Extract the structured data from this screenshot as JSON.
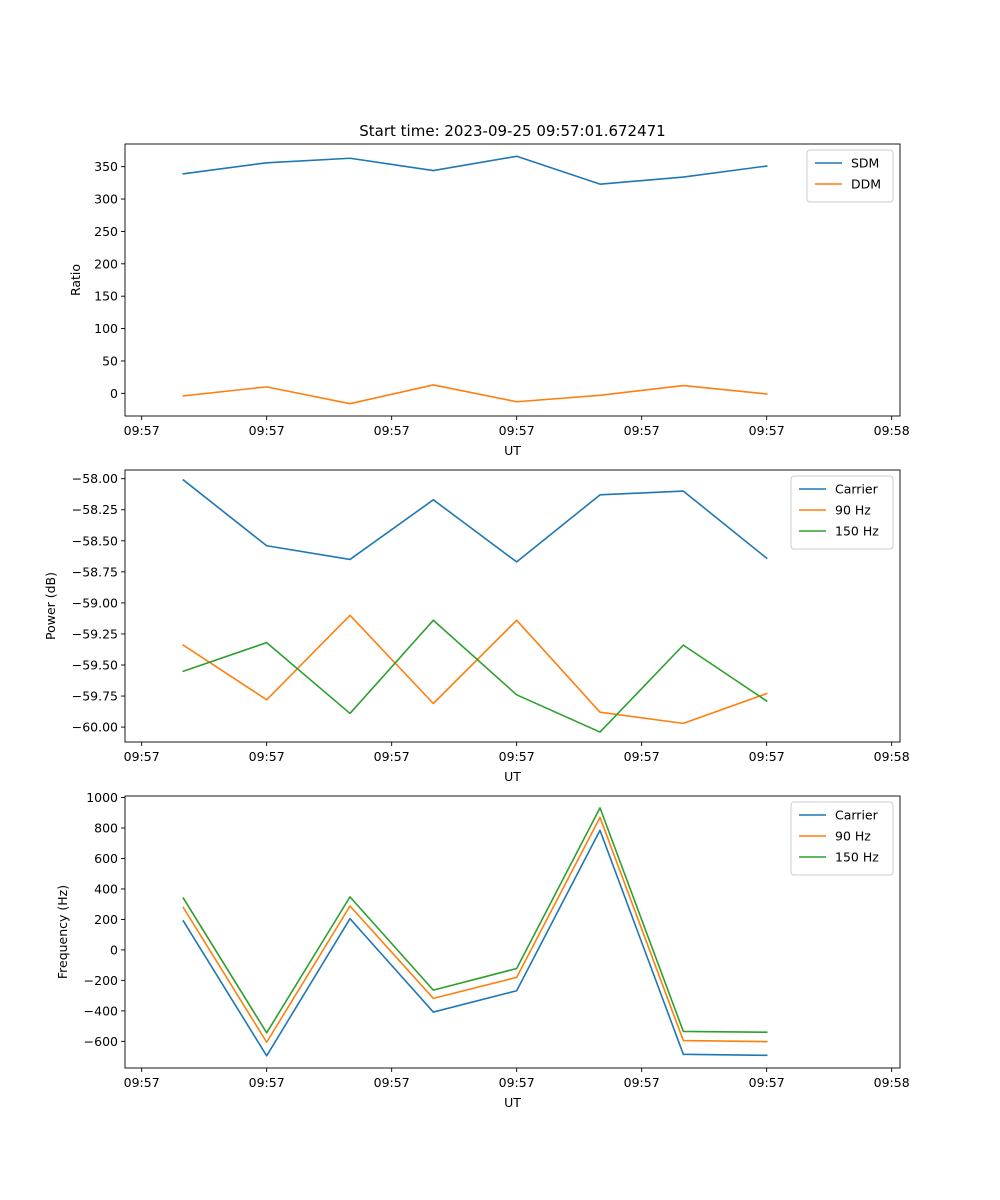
{
  "figure": {
    "title": "Start time: 2023-09-25 09:57:01.672471"
  },
  "chart_data": [
    {
      "type": "line",
      "title": "Start time: 2023-09-25 09:57:01.672471",
      "xlabel": "UT",
      "ylabel": "Ratio",
      "x_unit": "index",
      "xlim": [
        -0.7,
        8.6
      ],
      "ylim": [
        -35,
        385
      ],
      "yticks": [
        0,
        50,
        100,
        150,
        200,
        250,
        300,
        350
      ],
      "ytick_labels": [
        "0",
        "50",
        "100",
        "150",
        "200",
        "250",
        "300",
        "350"
      ],
      "xtick_positions": [
        -0.5,
        1.0,
        2.5,
        4.0,
        5.5,
        7.0,
        8.5
      ],
      "xtick_labels": [
        "09:57",
        "09:57",
        "09:57",
        "09:57",
        "09:57",
        "09:57",
        "09:58"
      ],
      "x": [
        0,
        1,
        2,
        3,
        4,
        5,
        6,
        7
      ],
      "legend": "top-right",
      "series": [
        {
          "name": "SDM",
          "color": "#1f77b4",
          "values": [
            339,
            356,
            363,
            344,
            366,
            323,
            334,
            351
          ]
        },
        {
          "name": "DDM",
          "color": "#ff7f0e",
          "values": [
            -4,
            10,
            -16,
            13,
            -13,
            -3,
            12,
            -1
          ]
        }
      ]
    },
    {
      "type": "line",
      "title": "",
      "xlabel": "UT",
      "ylabel": "Power (dB)",
      "x_unit": "index",
      "xlim": [
        -0.7,
        8.6
      ],
      "ylim": [
        -60.12,
        -57.93
      ],
      "yticks": [
        -60.0,
        -59.75,
        -59.5,
        -59.25,
        -59.0,
        -58.75,
        -58.5,
        -58.25,
        -58.0
      ],
      "ytick_labels": [
        "−60.00",
        "−59.75",
        "−59.50",
        "−59.25",
        "−59.00",
        "−58.75",
        "−58.50",
        "−58.25",
        "−58.00"
      ],
      "xtick_positions": [
        -0.5,
        1.0,
        2.5,
        4.0,
        5.5,
        7.0,
        8.5
      ],
      "xtick_labels": [
        "09:57",
        "09:57",
        "09:57",
        "09:57",
        "09:57",
        "09:57",
        "09:58"
      ],
      "x": [
        0,
        1,
        2,
        3,
        4,
        5,
        6,
        7
      ],
      "legend": "top-right",
      "series": [
        {
          "name": "Carrier",
          "color": "#1f77b4",
          "values": [
            -58.01,
            -58.54,
            -58.65,
            -58.17,
            -58.67,
            -58.13,
            -58.1,
            -58.64
          ]
        },
        {
          "name": "90 Hz",
          "color": "#ff7f0e",
          "values": [
            -59.34,
            -59.78,
            -59.1,
            -59.81,
            -59.14,
            -59.88,
            -59.97,
            -59.73
          ]
        },
        {
          "name": "150 Hz",
          "color": "#2ca02c",
          "values": [
            -59.55,
            -59.32,
            -59.89,
            -59.14,
            -59.74,
            -60.04,
            -59.34,
            -59.79
          ]
        }
      ]
    },
    {
      "type": "line",
      "title": "",
      "xlabel": "UT",
      "ylabel": "Frequency (Hz)",
      "x_unit": "index",
      "xlim": [
        -0.7,
        8.6
      ],
      "ylim": [
        -775,
        1010
      ],
      "yticks": [
        -600,
        -400,
        -200,
        0,
        200,
        400,
        600,
        800,
        1000
      ],
      "ytick_labels": [
        "−600",
        "−400",
        "−200",
        "0",
        "200",
        "400",
        "600",
        "800",
        "1000"
      ],
      "xtick_positions": [
        -0.5,
        1.0,
        2.5,
        4.0,
        5.5,
        7.0,
        8.5
      ],
      "xtick_labels": [
        "09:57",
        "09:57",
        "09:57",
        "09:57",
        "09:57",
        "09:57",
        "09:58"
      ],
      "x": [
        0,
        1,
        2,
        3,
        4,
        5,
        6,
        7
      ],
      "legend": "top-right",
      "series": [
        {
          "name": "Carrier",
          "color": "#1f77b4",
          "values": [
            190,
            -695,
            205,
            -408,
            -268,
            785,
            -685,
            -692
          ]
        },
        {
          "name": "90 Hz",
          "color": "#ff7f0e",
          "values": [
            278,
            -606,
            288,
            -318,
            -180,
            870,
            -595,
            -602
          ]
        },
        {
          "name": "150 Hz",
          "color": "#2ca02c",
          "values": [
            340,
            -544,
            348,
            -264,
            -122,
            932,
            -535,
            -540
          ]
        }
      ]
    }
  ]
}
